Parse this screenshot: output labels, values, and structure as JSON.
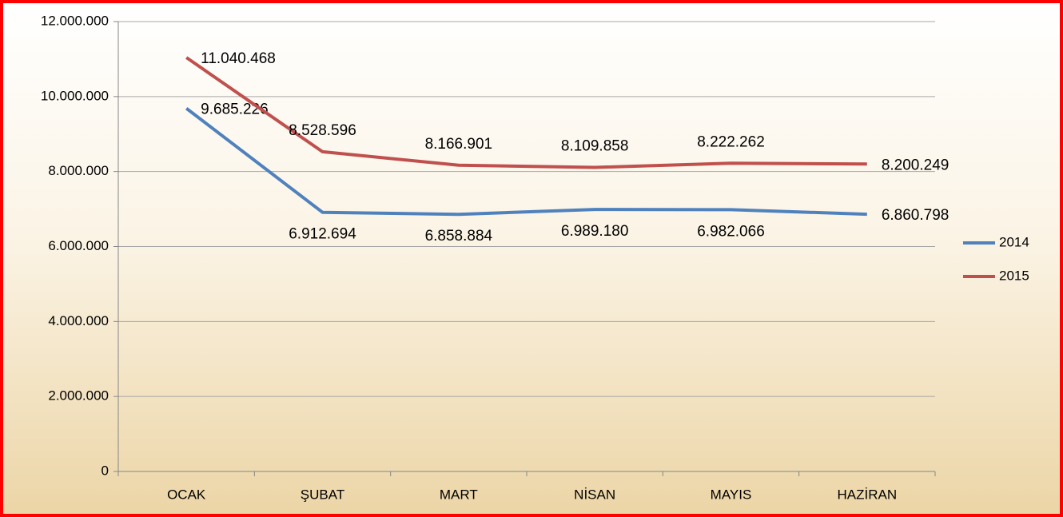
{
  "chart_data": {
    "type": "line",
    "categories": [
      "OCAK",
      "ŞUBAT",
      "MART",
      "NİSAN",
      "MAYIS",
      "HAZİRAN"
    ],
    "series": [
      {
        "name": "2014",
        "color": "#4f81bd",
        "values": [
          9685226,
          6912694,
          6858884,
          6989180,
          6982066,
          6860798
        ],
        "value_labels": [
          "9.685.226",
          "6.912.694",
          "6.858.884",
          "6.989.180",
          "6.982.066",
          "6.860.798"
        ]
      },
      {
        "name": "2015",
        "color": "#c0504d",
        "values": [
          11040468,
          8528596,
          8166901,
          8109858,
          8222262,
          8200249
        ],
        "value_labels": [
          "11.040.468",
          "8.528.596",
          "8.166.901",
          "8.109.858",
          "8.222.262",
          "8.200.249"
        ]
      }
    ],
    "ylim": [
      0,
      12000000
    ],
    "yticks": [
      0,
      {
        "value": 2000000,
        "label": "2.000.000"
      },
      {
        "value": 4000000,
        "label": "4.000.000"
      },
      {
        "value": 6000000,
        "label": "6.000.000"
      },
      {
        "value": 8000000,
        "label": "8.000.000"
      },
      {
        "value": 10000000,
        "label": "10.000.000"
      },
      {
        "value": 12000000,
        "label": "12.000.000"
      }
    ],
    "grid": true,
    "legend": "right"
  }
}
